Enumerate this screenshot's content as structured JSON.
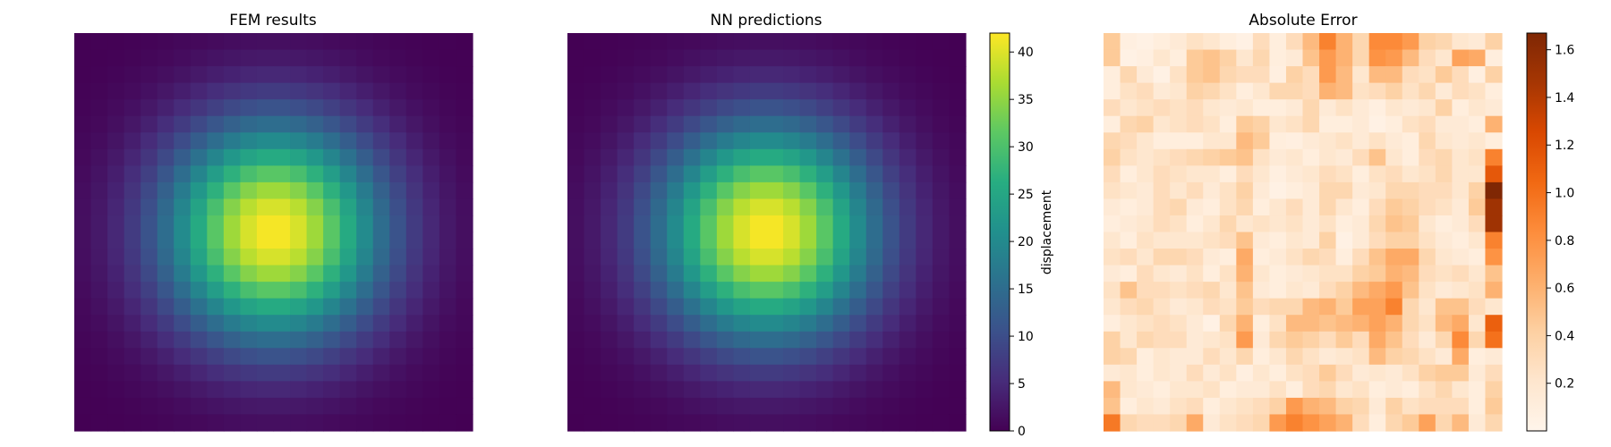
{
  "chart_data": [
    {
      "type": "heatmap",
      "title": "FEM results",
      "grid_size": [
        24,
        24
      ],
      "field": "gaussian",
      "peak_value": 42,
      "peak_center": [
        11.5,
        11.5
      ],
      "min_value": 0,
      "colormap": "viridis",
      "vmin": 0,
      "vmax": 42,
      "axes_visible": false
    },
    {
      "type": "heatmap",
      "title": "NN predictions",
      "grid_size": [
        24,
        24
      ],
      "field": "gaussian",
      "peak_value": 42,
      "peak_center": [
        11.5,
        11.5
      ],
      "min_value": 0,
      "colormap": "viridis",
      "vmin": 0,
      "vmax": 42,
      "axes_visible": false,
      "colorbar": {
        "label": "displacement",
        "ticks": [
          0,
          5,
          10,
          15,
          20,
          25,
          30,
          35,
          40
        ],
        "tick_labels": [
          "0",
          "5",
          "10",
          "15",
          "20",
          "25",
          "30",
          "35",
          "40"
        ]
      }
    },
    {
      "type": "heatmap",
      "title": "Absolute Error",
      "grid_size": [
        24,
        24
      ],
      "colormap": "oranges",
      "vmin": 0,
      "vmax": 1.67,
      "axes_visible": false,
      "values": [
        [
          0.45,
          0.08,
          0.05,
          0.1,
          0.15,
          0.25,
          0.2,
          0.1,
          0.05,
          0.3,
          0.1,
          0.3,
          0.55,
          0.9,
          0.6,
          0.35,
          0.85,
          0.85,
          0.75,
          0.4,
          0.35,
          0.2,
          0.15,
          0.4
        ],
        [
          0.45,
          0.05,
          0.08,
          0.2,
          0.1,
          0.45,
          0.5,
          0.4,
          0.2,
          0.35,
          0.1,
          0.15,
          0.5,
          0.75,
          0.6,
          0.35,
          0.8,
          0.75,
          0.55,
          0.3,
          0.2,
          0.7,
          0.65,
          0.1
        ],
        [
          0.1,
          0.35,
          0.15,
          0.05,
          0.25,
          0.45,
          0.5,
          0.35,
          0.3,
          0.3,
          0.08,
          0.4,
          0.3,
          0.75,
          0.55,
          0.2,
          0.55,
          0.55,
          0.3,
          0.25,
          0.45,
          0.3,
          0.08,
          0.4
        ],
        [
          0.1,
          0.25,
          0.3,
          0.15,
          0.2,
          0.4,
          0.35,
          0.25,
          0.1,
          0.2,
          0.35,
          0.35,
          0.3,
          0.6,
          0.55,
          0.25,
          0.3,
          0.4,
          0.25,
          0.35,
          0.15,
          0.3,
          0.25,
          0.1
        ],
        [
          0.3,
          0.2,
          0.25,
          0.3,
          0.25,
          0.3,
          0.2,
          0.15,
          0.2,
          0.1,
          0.1,
          0.15,
          0.35,
          0.15,
          0.25,
          0.15,
          0.08,
          0.2,
          0.15,
          0.2,
          0.4,
          0.1,
          0.2,
          0.15
        ],
        [
          0.1,
          0.35,
          0.4,
          0.2,
          0.25,
          0.3,
          0.25,
          0.1,
          0.45,
          0.4,
          0.2,
          0.25,
          0.35,
          0.1,
          0.1,
          0.15,
          0.05,
          0.1,
          0.25,
          0.3,
          0.15,
          0.15,
          0.1,
          0.6
        ],
        [
          0.35,
          0.3,
          0.2,
          0.1,
          0.1,
          0.1,
          0.2,
          0.2,
          0.55,
          0.45,
          0.1,
          0.08,
          0.15,
          0.2,
          0.25,
          0.15,
          0.25,
          0.15,
          0.1,
          0.35,
          0.2,
          0.15,
          0.2,
          0.1
        ],
        [
          0.4,
          0.25,
          0.2,
          0.25,
          0.3,
          0.35,
          0.4,
          0.45,
          0.5,
          0.25,
          0.15,
          0.2,
          0.1,
          0.2,
          0.15,
          0.3,
          0.5,
          0.2,
          0.1,
          0.3,
          0.35,
          0.2,
          0.25,
          0.9
        ],
        [
          0.3,
          0.1,
          0.2,
          0.3,
          0.25,
          0.2,
          0.2,
          0.1,
          0.3,
          0.2,
          0.08,
          0.15,
          0.2,
          0.3,
          0.25,
          0.1,
          0.25,
          0.3,
          0.2,
          0.25,
          0.35,
          0.2,
          0.2,
          1.15
        ],
        [
          0.25,
          0.2,
          0.15,
          0.3,
          0.2,
          0.3,
          0.15,
          0.25,
          0.4,
          0.15,
          0.05,
          0.1,
          0.15,
          0.35,
          0.35,
          0.15,
          0.2,
          0.35,
          0.35,
          0.3,
          0.3,
          0.2,
          0.4,
          1.67
        ],
        [
          0.15,
          0.1,
          0.15,
          0.3,
          0.35,
          0.15,
          0.1,
          0.25,
          0.35,
          0.1,
          0.2,
          0.3,
          0.15,
          0.35,
          0.2,
          0.1,
          0.3,
          0.45,
          0.4,
          0.3,
          0.25,
          0.15,
          0.45,
          1.5
        ],
        [
          0.1,
          0.15,
          0.2,
          0.3,
          0.25,
          0.1,
          0.2,
          0.35,
          0.2,
          0.25,
          0.2,
          0.25,
          0.15,
          0.25,
          0.1,
          0.15,
          0.35,
          0.5,
          0.45,
          0.2,
          0.1,
          0.15,
          0.3,
          1.5
        ],
        [
          0.2,
          0.1,
          0.25,
          0.2,
          0.2,
          0.2,
          0.25,
          0.3,
          0.5,
          0.15,
          0.1,
          0.2,
          0.15,
          0.4,
          0.05,
          0.15,
          0.3,
          0.4,
          0.4,
          0.25,
          0.15,
          0.1,
          0.2,
          0.9
        ],
        [
          0.25,
          0.3,
          0.2,
          0.35,
          0.35,
          0.3,
          0.15,
          0.1,
          0.65,
          0.1,
          0.15,
          0.25,
          0.35,
          0.3,
          0.1,
          0.3,
          0.5,
          0.65,
          0.65,
          0.35,
          0.2,
          0.15,
          0.1,
          0.8
        ],
        [
          0.15,
          0.1,
          0.3,
          0.2,
          0.15,
          0.25,
          0.1,
          0.25,
          0.6,
          0.2,
          0.1,
          0.15,
          0.2,
          0.25,
          0.25,
          0.4,
          0.45,
          0.6,
          0.55,
          0.3,
          0.25,
          0.3,
          0.2,
          0.5
        ],
        [
          0.25,
          0.5,
          0.3,
          0.3,
          0.25,
          0.3,
          0.35,
          0.2,
          0.5,
          0.15,
          0.1,
          0.2,
          0.15,
          0.3,
          0.4,
          0.55,
          0.65,
          0.75,
          0.5,
          0.25,
          0.15,
          0.2,
          0.25,
          0.6
        ],
        [
          0.2,
          0.3,
          0.35,
          0.25,
          0.15,
          0.2,
          0.3,
          0.25,
          0.45,
          0.3,
          0.35,
          0.35,
          0.55,
          0.6,
          0.45,
          0.7,
          0.7,
          0.9,
          0.35,
          0.2,
          0.5,
          0.5,
          0.3,
          0.2
        ],
        [
          0.1,
          0.2,
          0.25,
          0.3,
          0.25,
          0.15,
          0.05,
          0.35,
          0.6,
          0.1,
          0.25,
          0.55,
          0.55,
          0.5,
          0.55,
          0.6,
          0.7,
          0.6,
          0.35,
          0.25,
          0.55,
          0.65,
          0.2,
          1.1
        ],
        [
          0.4,
          0.2,
          0.35,
          0.3,
          0.3,
          0.15,
          0.2,
          0.25,
          0.75,
          0.15,
          0.35,
          0.45,
          0.4,
          0.3,
          0.45,
          0.3,
          0.65,
          0.5,
          0.3,
          0.15,
          0.35,
          0.85,
          0.35,
          1.0
        ],
        [
          0.4,
          0.35,
          0.1,
          0.2,
          0.15,
          0.15,
          0.3,
          0.2,
          0.35,
          0.1,
          0.2,
          0.35,
          0.25,
          0.15,
          0.2,
          0.25,
          0.55,
          0.4,
          0.35,
          0.25,
          0.15,
          0.65,
          0.1,
          0.15
        ],
        [
          0.15,
          0.2,
          0.1,
          0.2,
          0.15,
          0.3,
          0.15,
          0.25,
          0.08,
          0.2,
          0.1,
          0.25,
          0.3,
          0.45,
          0.3,
          0.15,
          0.2,
          0.15,
          0.25,
          0.4,
          0.45,
          0.45,
          0.15,
          0.3
        ],
        [
          0.55,
          0.2,
          0.15,
          0.1,
          0.2,
          0.2,
          0.25,
          0.1,
          0.15,
          0.15,
          0.25,
          0.1,
          0.3,
          0.35,
          0.2,
          0.25,
          0.1,
          0.15,
          0.1,
          0.25,
          0.35,
          0.2,
          0.1,
          0.4
        ],
        [
          0.5,
          0.1,
          0.2,
          0.15,
          0.25,
          0.3,
          0.1,
          0.2,
          0.25,
          0.3,
          0.4,
          0.75,
          0.6,
          0.55,
          0.4,
          0.35,
          0.15,
          0.4,
          0.25,
          0.3,
          0.3,
          0.3,
          0.1,
          0.45
        ],
        [
          0.95,
          0.35,
          0.3,
          0.3,
          0.35,
          0.65,
          0.15,
          0.25,
          0.3,
          0.35,
          0.75,
          0.9,
          0.8,
          0.7,
          0.6,
          0.3,
          0.1,
          0.35,
          0.45,
          0.7,
          0.35,
          0.55,
          0.15,
          0.35
        ]
      ],
      "colorbar": {
        "label": "",
        "ticks": [
          0.2,
          0.4,
          0.6,
          0.8,
          1.0,
          1.2,
          1.4,
          1.6
        ],
        "tick_labels": [
          "0.2",
          "0.4",
          "0.6",
          "0.8",
          "1.0",
          "1.2",
          "1.4",
          "1.6"
        ]
      }
    }
  ]
}
